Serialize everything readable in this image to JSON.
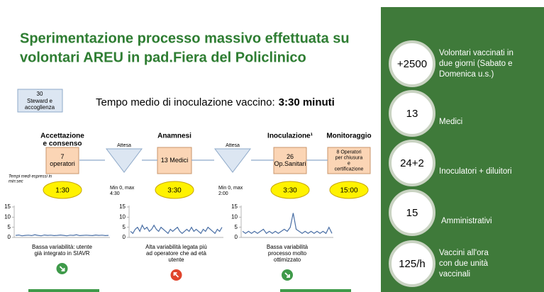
{
  "title": [
    "Sperimentazione processo massivo effettuata su",
    "volontari AREU in pad.Fiera del Policlinico"
  ],
  "staff_box": {
    "count": "30",
    "label": [
      "Steward e",
      "accoglienza"
    ]
  },
  "headline": {
    "text": "Tempo medio di inoculazione vaccino:",
    "emphasis": "3:30 minuti"
  },
  "note": [
    "Tempi medi espressi in",
    "min:sec"
  ],
  "steps": [
    {
      "header": [
        "Accettazione",
        "e consenso"
      ],
      "box": [
        "7",
        "operatori"
      ],
      "time": "1:30"
    },
    {
      "header": [
        "Anamnesi"
      ],
      "box": [
        "13 Medici"
      ],
      "time": "3:30"
    },
    {
      "header": [
        "Inoculazione¹"
      ],
      "box": [
        "26",
        "Op.Sanitari"
      ],
      "time": "3:30"
    },
    {
      "header": [
        "Monitoraggio"
      ],
      "box": [
        "8 Operatori",
        "per chiusura",
        "e",
        "certificazione"
      ],
      "time": "15:00"
    }
  ],
  "waits": [
    {
      "label": "Attesa",
      "range": [
        "Min 0, max",
        "4:30"
      ]
    },
    {
      "label": "Attesa",
      "range": [
        "Min 0, max",
        "2:00"
      ]
    }
  ],
  "charts": [
    {
      "ylim": [
        0,
        15
      ],
      "yticks": [
        0,
        5,
        10,
        15
      ],
      "color": "#4a6fa5",
      "values": [
        1,
        1.2,
        0.8,
        1,
        1.1,
        0.9,
        1.3,
        1,
        0.8,
        1.2,
        1,
        1.1,
        0.9,
        1,
        1.2,
        1,
        0.8,
        1.1,
        1,
        1.3,
        0.9,
        1,
        1.1,
        1,
        0.9,
        1.2,
        1,
        1.1,
        0.9,
        1
      ],
      "caption": [
        "Bassa variabilità: utente",
        "già integrato in SIAVR"
      ]
    },
    {
      "ylim": [
        0,
        15
      ],
      "yticks": [
        0,
        5,
        10,
        15
      ],
      "color": "#4a6fa5",
      "values": [
        3,
        2,
        4,
        5,
        3,
        6,
        4,
        5,
        3,
        4,
        6,
        4,
        3,
        5,
        4,
        3,
        2,
        4,
        3,
        4,
        5,
        3,
        2,
        3,
        4,
        3,
        5,
        3,
        4,
        3,
        2,
        4,
        3,
        5,
        4,
        3,
        2,
        4,
        3,
        5
      ],
      "caption": [
        "Alta variabilità legata più",
        "ad operatore che ad età",
        "utente"
      ]
    },
    {
      "ylim": [
        0,
        15
      ],
      "yticks": [
        0,
        5,
        10,
        15
      ],
      "color": "#4a6fa5",
      "values": [
        3,
        2,
        3,
        2,
        3,
        2,
        3,
        4,
        2,
        3,
        2,
        3,
        2,
        3,
        4,
        3,
        5,
        12,
        4,
        3,
        2,
        3,
        2,
        3,
        2,
        3,
        2,
        3,
        2,
        5,
        2
      ],
      "caption": [
        "Bassa variabilità",
        "processo molto",
        "ottimizzato"
      ]
    }
  ],
  "stats": [
    {
      "value": "+2500",
      "label": [
        "Volontari vaccinati in",
        "due giorni (Sabato e",
        "Domenica u.s.)"
      ]
    },
    {
      "value": "13",
      "label": [
        "Medici"
      ]
    },
    {
      "value": "24+2",
      "label": [
        "Inoculatori + diluitori"
      ]
    },
    {
      "value": "15",
      "label": [
        "Amministrativi"
      ]
    },
    {
      "value": "125/h",
      "label": [
        "Vaccini all'ora",
        "con due unità",
        "vaccinali"
      ]
    }
  ]
}
